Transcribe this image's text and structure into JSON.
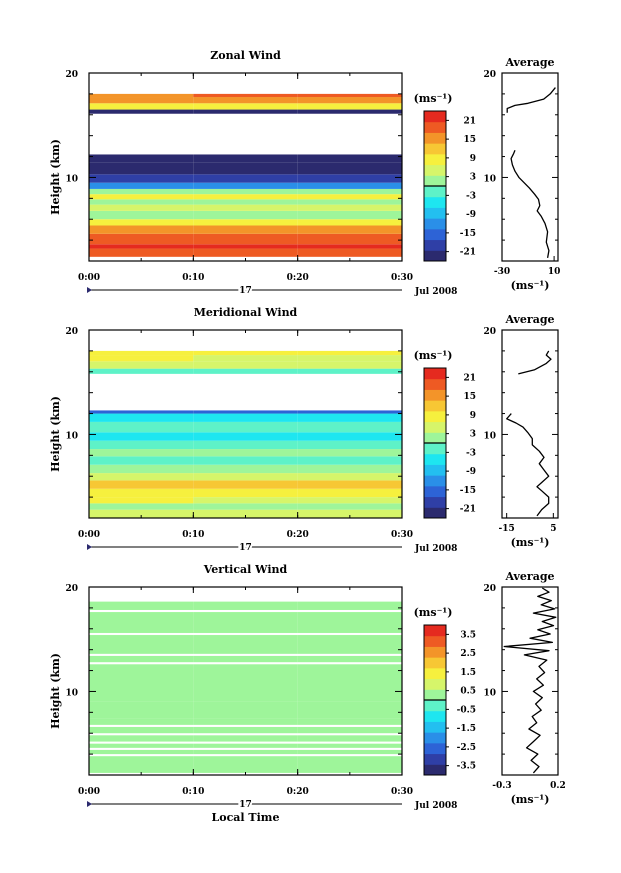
{
  "chart_data": [
    {
      "type": "heatmap",
      "title": "Zonal Wind",
      "ylabel": "Height (km)",
      "ylim": [
        2,
        20
      ],
      "y_ticks": [
        "20",
        "10"
      ],
      "x_ticks": [
        "0:00",
        "0:10",
        "0:20",
        "0:30"
      ],
      "day_label": "17",
      "date_label": "Jul 2008",
      "colorbar": {
        "unit": "(ms⁻¹)",
        "range": [
          -24,
          24
        ],
        "ticks": [
          "21",
          "15",
          "9",
          "3",
          "-3",
          "-9",
          "-15",
          "-21"
        ]
      },
      "times": [
        0,
        10,
        20,
        30
      ],
      "rows": [
        {
          "h0": 2.4,
          "h1": 3.2,
          "v": [
            18,
            18,
            18
          ]
        },
        {
          "h0": 3.2,
          "h1": 3.6,
          "v": [
            22,
            22,
            22
          ]
        },
        {
          "h0": 3.6,
          "h1": 4.6,
          "v": [
            19,
            19,
            19
          ]
        },
        {
          "h0": 4.6,
          "h1": 5.4,
          "v": [
            14,
            14,
            14
          ]
        },
        {
          "h0": 5.4,
          "h1": 6.0,
          "v": [
            8,
            8,
            8
          ]
        },
        {
          "h0": 6.0,
          "h1": 6.8,
          "v": [
            2,
            2,
            2
          ]
        },
        {
          "h0": 6.8,
          "h1": 7.4,
          "v": [
            5,
            5,
            5
          ]
        },
        {
          "h0": 7.4,
          "h1": 7.9,
          "v": [
            1,
            1,
            1
          ]
        },
        {
          "h0": 7.9,
          "h1": 8.4,
          "v": [
            9,
            9,
            9
          ]
        },
        {
          "h0": 8.4,
          "h1": 8.9,
          "v": [
            3,
            3,
            3
          ]
        },
        {
          "h0": 8.9,
          "h1": 9.5,
          "v": [
            -12,
            -12,
            -12
          ]
        },
        {
          "h0": 9.5,
          "h1": 10.3,
          "v": [
            -18,
            -18,
            -18
          ]
        },
        {
          "h0": 10.3,
          "h1": 11.4,
          "v": [
            -21,
            -21,
            -21
          ]
        },
        {
          "h0": 11.4,
          "h1": 12.2,
          "v": [
            -23,
            -23,
            -23
          ]
        },
        {
          "h0": 16.1,
          "h1": 16.5,
          "v": [
            -21,
            -21,
            -21
          ]
        },
        {
          "h0": 16.5,
          "h1": 17.1,
          "v": [
            9,
            9,
            9
          ]
        },
        {
          "h0": 17.1,
          "h1": 17.7,
          "v": [
            15,
            17,
            17
          ]
        },
        {
          "h0": 17.7,
          "h1": 18.0,
          "v": [
            14,
            19,
            19
          ]
        }
      ],
      "average": {
        "xlim": [
          -30,
          13
        ],
        "x_ticks": [
          "-30",
          "10"
        ],
        "y_ticks": [
          "20",
          "10"
        ],
        "title": "Average",
        "xlabel": "(ms⁻¹)",
        "series": [
          {
            "segment": [
              [
                5,
                2.3
              ],
              [
                6,
                3.0
              ],
              [
                4,
                3.8
              ],
              [
                5,
                4.8
              ],
              [
                3,
                5.6
              ],
              [
                0,
                6.3
              ],
              [
                -3,
                6.8
              ],
              [
                -1,
                7.3
              ],
              [
                -2,
                7.9
              ],
              [
                -5,
                8.4
              ],
              [
                -9,
                9.0
              ],
              [
                -13,
                9.5
              ],
              [
                -17,
                10.0
              ],
              [
                -20,
                10.6
              ],
              [
                -22,
                11.2
              ],
              [
                -23,
                11.8
              ],
              [
                -21,
                12.3
              ],
              [
                -20,
                12.6
              ]
            ]
          },
          {
            "segment": [
              [
                -26,
                16.2
              ],
              [
                -26,
                16.6
              ],
              [
                -20,
                16.9
              ],
              [
                -10,
                17.1
              ],
              [
                2,
                17.5
              ],
              [
                7,
                18.0
              ],
              [
                11,
                18.6
              ]
            ]
          }
        ]
      }
    },
    {
      "type": "heatmap",
      "title": "Meridional Wind",
      "ylabel": "Height (km)",
      "ylim": [
        2,
        20
      ],
      "y_ticks": [
        "20",
        "10"
      ],
      "x_ticks": [
        "0:00",
        "0:10",
        "0:20",
        "0:30"
      ],
      "day_label": "17",
      "date_label": "Jul 2008",
      "colorbar": {
        "unit": "(ms⁻¹)",
        "range": [
          -24,
          24
        ],
        "ticks": [
          "21",
          "15",
          "9",
          "3",
          "-3",
          "-9",
          "-15",
          "-21"
        ]
      },
      "times": [
        0,
        10,
        20,
        30
      ],
      "rows": [
        {
          "h0": 2.0,
          "h1": 2.8,
          "v": [
            6,
            6,
            6
          ]
        },
        {
          "h0": 2.8,
          "h1": 3.4,
          "v": [
            1,
            3,
            3
          ]
        },
        {
          "h0": 3.4,
          "h1": 4.0,
          "v": [
            7,
            5,
            5
          ]
        },
        {
          "h0": 4.0,
          "h1": 4.8,
          "v": [
            9,
            9,
            9
          ]
        },
        {
          "h0": 4.8,
          "h1": 5.6,
          "v": [
            12,
            12,
            12
          ]
        },
        {
          "h0": 5.6,
          "h1": 6.3,
          "v": [
            6,
            6,
            6
          ]
        },
        {
          "h0": 6.3,
          "h1": 7.1,
          "v": [
            2,
            2,
            2
          ]
        },
        {
          "h0": 7.1,
          "h1": 7.9,
          "v": [
            -1,
            -1,
            -1
          ]
        },
        {
          "h0": 7.9,
          "h1": 8.6,
          "v": [
            2,
            2,
            2
          ]
        },
        {
          "h0": 8.6,
          "h1": 9.4,
          "v": [
            -1,
            -1,
            -1
          ]
        },
        {
          "h0": 9.4,
          "h1": 10.2,
          "v": [
            -4,
            -4,
            -4
          ]
        },
        {
          "h0": 10.2,
          "h1": 11.2,
          "v": [
            -2,
            -2,
            -2
          ]
        },
        {
          "h0": 11.2,
          "h1": 12.0,
          "v": [
            -5,
            -5,
            -5
          ]
        },
        {
          "h0": 12.0,
          "h1": 12.3,
          "v": [
            -14,
            -14,
            -14
          ]
        },
        {
          "h0": 15.8,
          "h1": 16.3,
          "v": [
            -2,
            -2,
            -2
          ]
        },
        {
          "h0": 16.3,
          "h1": 17.0,
          "v": [
            5,
            5,
            5
          ]
        },
        {
          "h0": 17.0,
          "h1": 17.6,
          "v": [
            9,
            5,
            5
          ]
        },
        {
          "h0": 17.6,
          "h1": 18.0,
          "v": [
            7,
            7,
            7
          ]
        }
      ],
      "average": {
        "xlim": [
          -17,
          7
        ],
        "x_ticks": [
          "-15",
          "5"
        ],
        "y_ticks": [
          "20",
          "10"
        ],
        "title": "Average",
        "xlabel": "(ms⁻¹)",
        "series": [
          {
            "segment": [
              [
                -2,
                2.2
              ],
              [
                0,
                2.8
              ],
              [
                3,
                3.4
              ],
              [
                3,
                4.0
              ],
              [
                0,
                4.6
              ],
              [
                -2,
                5.0
              ],
              [
                0,
                5.4
              ],
              [
                3,
                6.0
              ],
              [
                1,
                6.6
              ],
              [
                -1,
                7.2
              ],
              [
                1,
                7.8
              ],
              [
                -1,
                8.4
              ],
              [
                -4,
                9.0
              ],
              [
                -4,
                9.6
              ],
              [
                -6,
                10.2
              ],
              [
                -8,
                10.7
              ],
              [
                -11,
                11.1
              ],
              [
                -15,
                11.5
              ],
              [
                -13,
                12.0
              ]
            ]
          },
          {
            "segment": [
              [
                -10,
                15.8
              ],
              [
                -3,
                16.2
              ],
              [
                2,
                16.8
              ],
              [
                4,
                17.2
              ],
              [
                2,
                17.6
              ],
              [
                3,
                18.0
              ]
            ]
          }
        ]
      }
    },
    {
      "type": "heatmap",
      "title": "Vertical Wind",
      "ylabel": "Height (km)",
      "ylim": [
        2,
        20
      ],
      "y_ticks": [
        "20",
        "10"
      ],
      "x_ticks": [
        "0:00",
        "0:10",
        "0:20",
        "0:30"
      ],
      "day_label": "17",
      "date_label": "Jul 2008",
      "xlabel": "Local Time",
      "colorbar": {
        "unit": "(ms⁻¹)",
        "range": [
          -4,
          4
        ],
        "ticks": [
          "3.5",
          "2.5",
          "1.5",
          "0.5",
          "-0.5",
          "-1.5",
          "-2.5",
          "-3.5"
        ]
      },
      "times": [
        0,
        10,
        20,
        30
      ],
      "rows": [
        {
          "h0": 2.2,
          "h1": 3.8,
          "v": [
            0,
            0,
            0
          ]
        },
        {
          "h0": 4.0,
          "h1": 4.4,
          "v": [
            0,
            0,
            0
          ]
        },
        {
          "h0": 4.6,
          "h1": 5.0,
          "v": [
            0,
            0,
            0
          ]
        },
        {
          "h0": 5.2,
          "h1": 5.8,
          "v": [
            0,
            0,
            0
          ]
        },
        {
          "h0": 6.0,
          "h1": 6.6,
          "v": [
            0,
            0,
            0
          ]
        },
        {
          "h0": 6.8,
          "h1": 7.4,
          "v": [
            0,
            0,
            0
          ]
        },
        {
          "h0": 7.4,
          "h1": 9.0,
          "v": [
            0,
            0,
            0
          ]
        },
        {
          "h0": 9.0,
          "h1": 12.6,
          "v": [
            0,
            0,
            0
          ]
        },
        {
          "h0": 12.8,
          "h1": 13.4,
          "v": [
            0,
            0,
            0
          ]
        },
        {
          "h0": 13.6,
          "h1": 15.4,
          "v": [
            0,
            0,
            0
          ]
        },
        {
          "h0": 15.6,
          "h1": 17.6,
          "v": [
            0,
            0,
            0
          ]
        },
        {
          "h0": 17.8,
          "h1": 18.6,
          "v": [
            0,
            0,
            0
          ]
        }
      ],
      "average": {
        "xlim": [
          -0.3,
          0.2
        ],
        "x_ticks": [
          "-0.3",
          "0.2"
        ],
        "y_ticks": [
          "20",
          "10"
        ],
        "title": "Average",
        "xlabel": "(ms⁻¹)",
        "series": [
          {
            "segment": [
              [
                -0.02,
                2.2
              ],
              [
                0.03,
                2.8
              ],
              [
                -0.04,
                3.4
              ],
              [
                0.02,
                4.0
              ],
              [
                -0.08,
                4.6
              ],
              [
                -0.02,
                5.2
              ],
              [
                0.04,
                5.8
              ],
              [
                -0.06,
                6.4
              ],
              [
                0.01,
                7.0
              ],
              [
                -0.03,
                7.6
              ],
              [
                0.05,
                8.2
              ],
              [
                0.0,
                8.8
              ],
              [
                0.06,
                9.4
              ],
              [
                -0.02,
                10.0
              ],
              [
                0.07,
                10.6
              ],
              [
                0.01,
                11.2
              ],
              [
                0.08,
                11.8
              ],
              [
                0.03,
                12.4
              ],
              [
                0.1,
                13.0
              ],
              [
                -0.1,
                13.5
              ],
              [
                0.12,
                13.9
              ],
              [
                -0.28,
                14.3
              ],
              [
                0.15,
                14.7
              ],
              [
                -0.05,
                15.1
              ],
              [
                0.13,
                15.5
              ],
              [
                0.02,
                15.9
              ],
              [
                0.16,
                16.3
              ],
              [
                0.06,
                16.7
              ],
              [
                0.18,
                17.1
              ],
              [
                -0.02,
                17.5
              ],
              [
                0.17,
                17.9
              ],
              [
                0.05,
                18.3
              ],
              [
                0.14,
                18.7
              ],
              [
                0.02,
                19.1
              ],
              [
                0.12,
                19.5
              ],
              [
                0.06,
                19.9
              ]
            ]
          }
        ]
      }
    }
  ]
}
